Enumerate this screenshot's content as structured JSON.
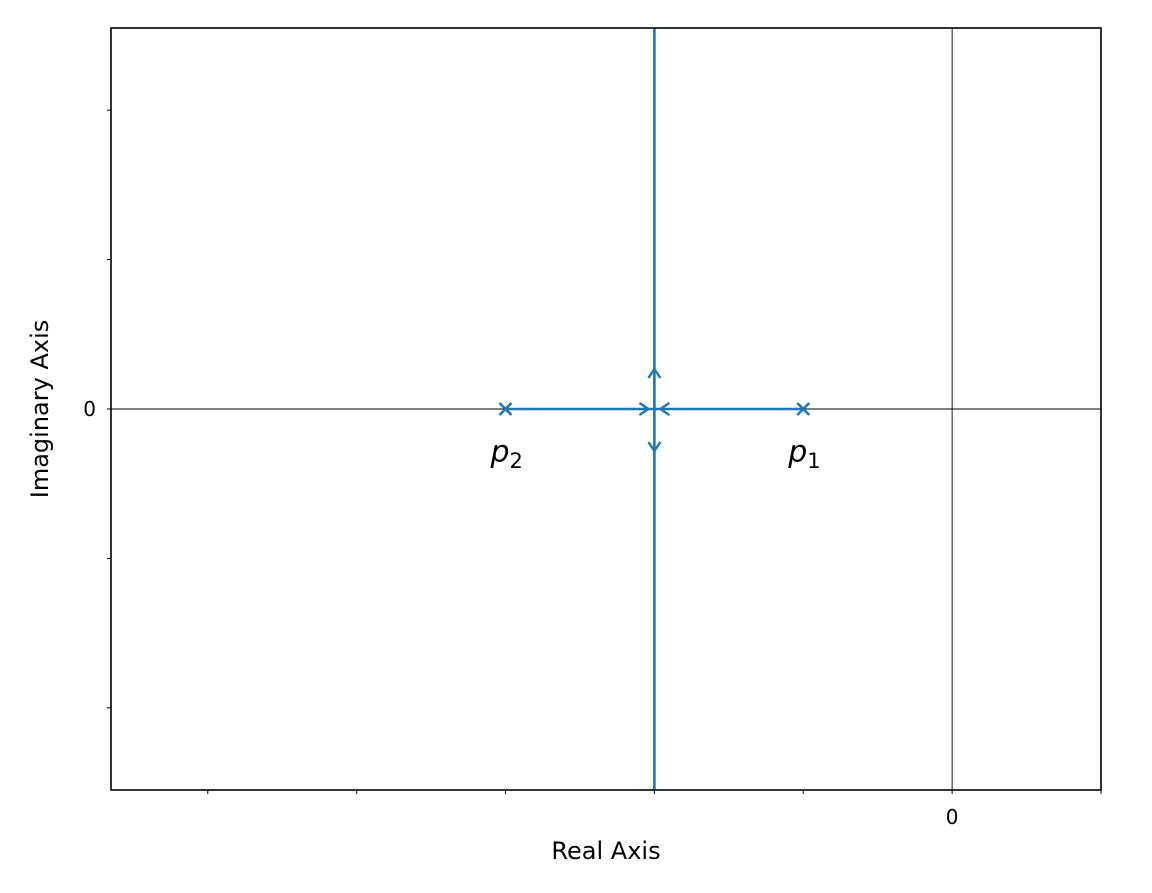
{
  "chart_data": {
    "type": "line",
    "title": "",
    "xlabel": "Real Axis",
    "ylabel": "Imaginary Axis",
    "xlim": [
      -5.65,
      1.0
    ],
    "ylim": [
      -2.55,
      2.55
    ],
    "x_ticks": [
      -5,
      -4,
      -3,
      -2,
      -1,
      0,
      1
    ],
    "x_tick_labels": [
      "",
      "",
      "",
      "",
      "",
      "0",
      ""
    ],
    "y_ticks": [
      -2,
      -1,
      0,
      1,
      2
    ],
    "y_tick_labels": [
      "",
      "",
      "0",
      "",
      ""
    ],
    "reference_lines": [
      {
        "orientation": "vertical",
        "value": 0
      },
      {
        "orientation": "horizontal",
        "value": 0
      }
    ],
    "color": "#1f77b4",
    "poles": [
      {
        "label": "p",
        "subscript": "1",
        "x": -1,
        "y": 0
      },
      {
        "label": "p",
        "subscript": "2",
        "x": -3,
        "y": 0
      }
    ],
    "breakaway_point": {
      "x": -2,
      "y": 0
    },
    "series": [
      {
        "x": [
          -1,
          -2
        ],
        "y": [
          0,
          0
        ]
      },
      {
        "x": [
          -3,
          -2
        ],
        "y": [
          0,
          0
        ]
      },
      {
        "x": [
          -2,
          -2
        ],
        "y": [
          0,
          2.55
        ]
      },
      {
        "x": [
          -2,
          -2
        ],
        "y": [
          0,
          -2.55
        ]
      }
    ]
  }
}
